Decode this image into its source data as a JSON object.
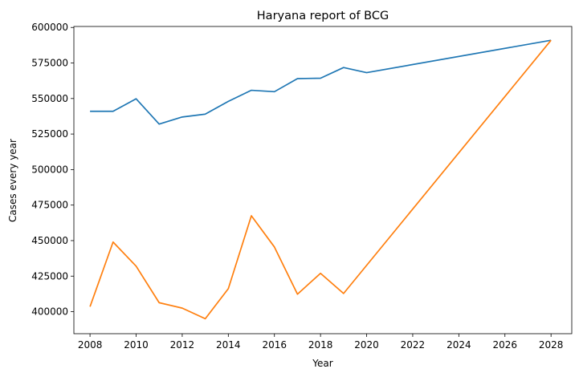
{
  "chart_data": {
    "type": "line",
    "title": "Haryana report of BCG",
    "xlabel": "Year",
    "ylabel": "Cases every year",
    "xlim": [
      2007.3,
      2028.9
    ],
    "ylim": [
      384500,
      600700
    ],
    "x_ticks": [
      2008,
      2010,
      2012,
      2014,
      2016,
      2018,
      2020,
      2022,
      2024,
      2026,
      2028
    ],
    "y_ticks": [
      400000,
      425000,
      450000,
      475000,
      500000,
      525000,
      550000,
      575000,
      600000
    ],
    "grid": false,
    "legend": "none",
    "series": [
      {
        "color": "#1f77b4",
        "x": [
          2008,
          2009,
          2010,
          2011,
          2012,
          2013,
          2014,
          2015,
          2016,
          2017,
          2018,
          2019,
          2020,
          2028
        ],
        "y": [
          541000,
          541000,
          549800,
          532000,
          537000,
          539000,
          548000,
          555800,
          554800,
          564000,
          564300,
          571800,
          568200,
          591000
        ]
      },
      {
        "color": "#ff7f0e",
        "x": [
          2008,
          2009,
          2010,
          2011,
          2012,
          2013,
          2014,
          2015,
          2016,
          2017,
          2018,
          2019,
          2028
        ],
        "y": [
          403500,
          449000,
          432000,
          406300,
          402500,
          395000,
          416200,
          467500,
          445500,
          412300,
          427000,
          412800,
          591000
        ]
      }
    ]
  }
}
